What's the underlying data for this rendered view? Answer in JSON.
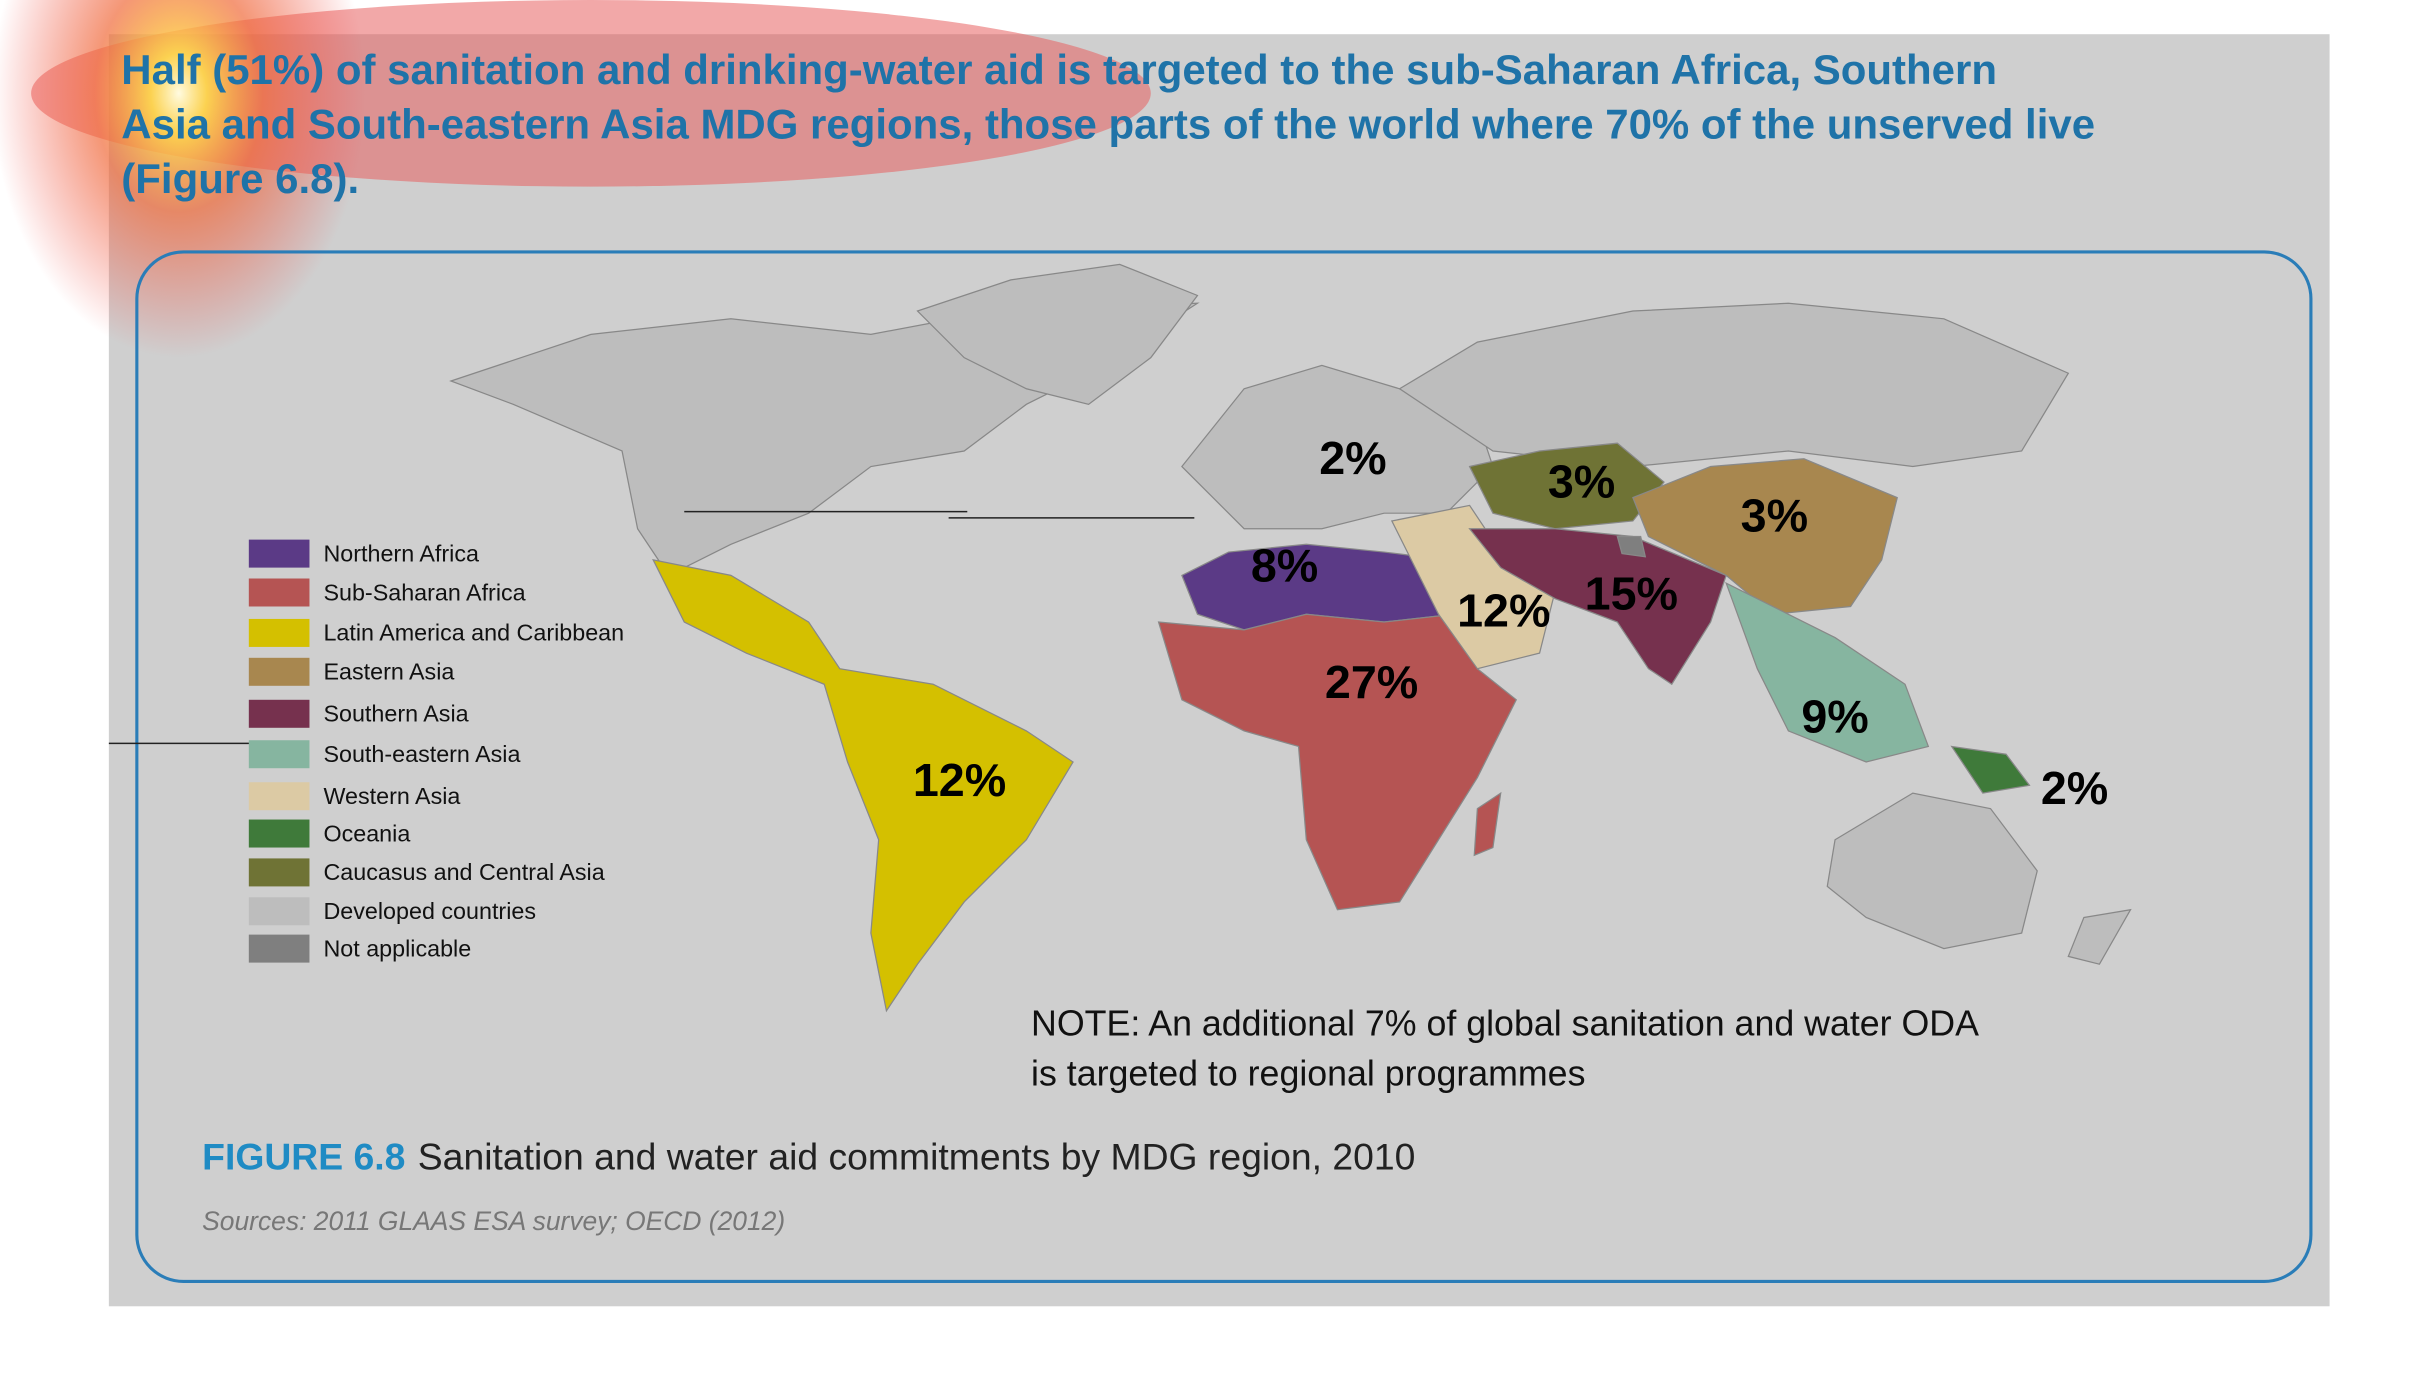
{
  "header": {
    "lines": [
      "Half (51%) of sanitation and drinking-water aid is targeted to the sub-Saharan Africa, Southern",
      "Asia and South-eastern Asia MDG regions, those parts of the world where 70% of the unserved live",
      "(Figure 6.8)."
    ]
  },
  "map": {
    "legend": [
      {
        "label": "Northern Africa",
        "color": "#5b3a86"
      },
      {
        "label": "Sub-Saharan Africa",
        "color": "#b55453"
      },
      {
        "label": "Latin America and Caribbean",
        "color": "#d4c000"
      },
      {
        "label": "Eastern Asia",
        "color": "#a8874f"
      },
      {
        "label": "Southern Asia",
        "color": "#76314e"
      },
      {
        "label": "South-eastern Asia",
        "color": "#86b5a0"
      },
      {
        "label": "Western Asia",
        "color": "#dccaa4"
      },
      {
        "label": "Oceania",
        "color": "#3f7a3a"
      },
      {
        "label": "Caucasus and Central Asia",
        "color": "#6f7335"
      },
      {
        "label": "Developed countries",
        "color": "#bdbdbd"
      },
      {
        "label": "Not applicable",
        "color": "#7f7f7f"
      }
    ],
    "region_labels": [
      "2%",
      "3%",
      "3%",
      "8%",
      "12%",
      "15%",
      "27%",
      "9%",
      "2%",
      "12%"
    ],
    "note": [
      "NOTE: An additional 7% of global sanitation and water ODA",
      "is targeted to regional programmes"
    ]
  },
  "figure": {
    "number": "FIGURE 6.8",
    "caption": "Sanitation and water aid commitments by MDG region, 2010",
    "sources": "Sources: 2011 GLAAS ESA survey; OECD (2012)"
  }
}
